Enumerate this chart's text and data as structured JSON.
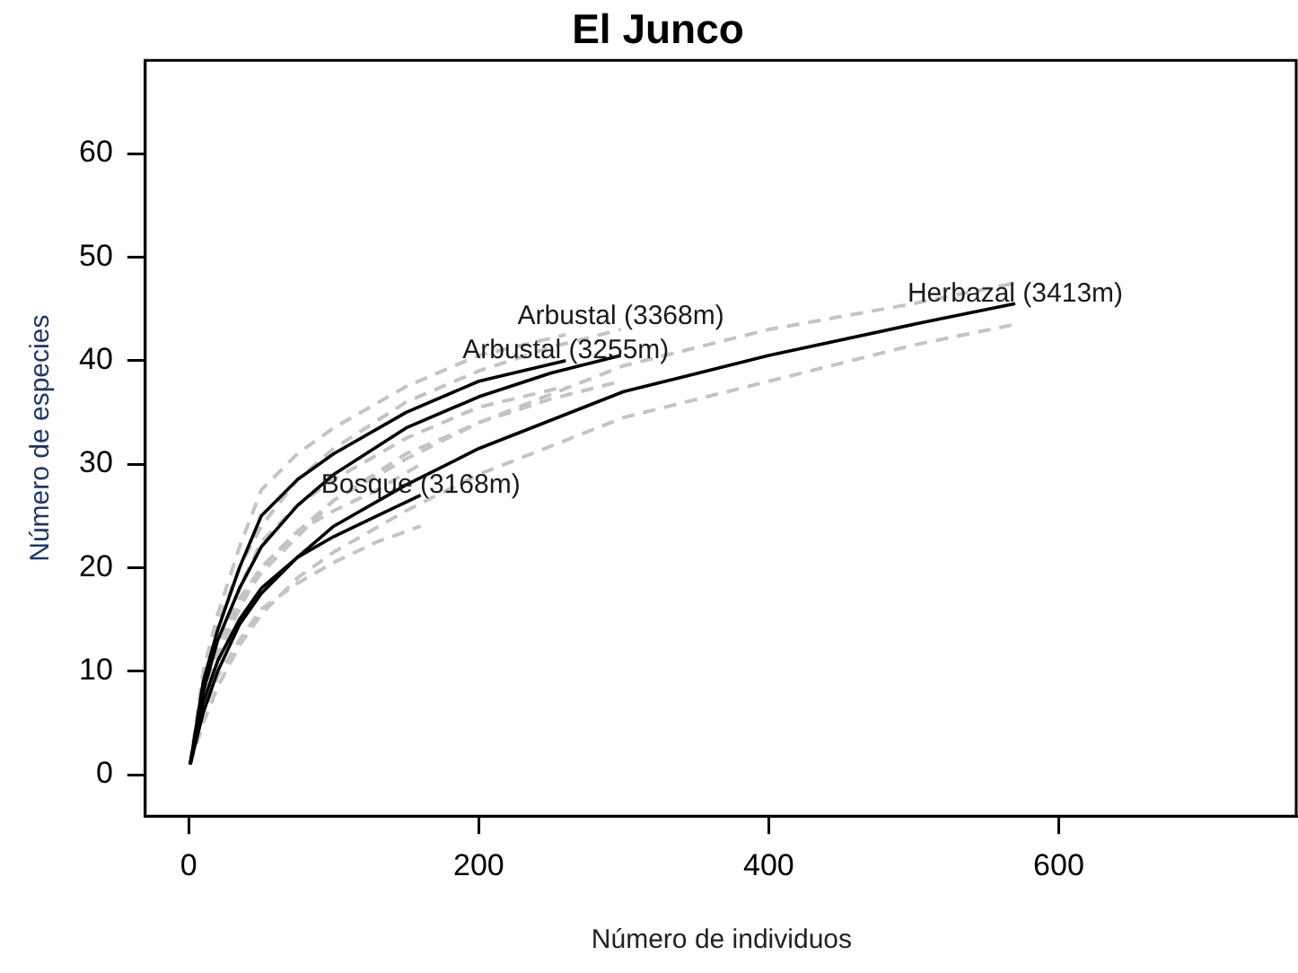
{
  "chart_data": {
    "type": "line",
    "title": "El Junco",
    "xlabel": "Número de individuos",
    "ylabel": "Número de especies",
    "xlim": [
      -30,
      765
    ],
    "ylim": [
      -4,
      69
    ],
    "xticks": [
      0,
      200,
      400,
      600
    ],
    "yticks": [
      0,
      10,
      20,
      30,
      40,
      50,
      60
    ],
    "grid": false,
    "legend": false,
    "marker": "none",
    "line_style": "solid",
    "series": [
      {
        "name": "Bosque (3168m)",
        "color": "#000000",
        "x": [
          1,
          10,
          20,
          35,
          50,
          75,
          100,
          130,
          160
        ],
        "values": [
          1,
          7,
          11,
          15,
          18,
          21,
          23,
          25,
          27
        ]
      },
      {
        "name": "Arbustal (3255m)",
        "color": "#000000",
        "x": [
          1,
          10,
          20,
          35,
          50,
          75,
          100,
          150,
          200,
          260
        ],
        "values": [
          1,
          9,
          14,
          20,
          25,
          28.5,
          31,
          35,
          38,
          40
        ]
      },
      {
        "name": "Arbustal (3368m)",
        "color": "#000000",
        "x": [
          1,
          10,
          20,
          35,
          50,
          75,
          100,
          150,
          200,
          250,
          298
        ],
        "values": [
          1,
          8,
          13,
          18,
          22,
          26,
          29,
          33.5,
          36.5,
          38.8,
          40.5
        ]
      },
      {
        "name": "Herbazal (3413m)",
        "color": "#000000",
        "x": [
          1,
          10,
          20,
          35,
          50,
          75,
          100,
          150,
          200,
          300,
          400,
          500,
          570
        ],
        "values": [
          1,
          6,
          10,
          14.5,
          17.5,
          21,
          24,
          28,
          31.5,
          37,
          40.5,
          43.5,
          45.5
        ]
      },
      {
        "color": "#c4c4c4",
        "line_style": "dashed",
        "x": [
          1,
          10,
          20,
          35,
          50,
          75,
          100,
          130,
          160
        ],
        "values": [
          1,
          6,
          9.5,
          13,
          16,
          18.5,
          20.5,
          22.5,
          24
        ]
      },
      {
        "color": "#c4c4c4",
        "line_style": "dashed",
        "x": [
          1,
          10,
          20,
          35,
          50,
          75,
          100,
          130,
          160
        ],
        "values": [
          1,
          8,
          12.5,
          17,
          20,
          23.5,
          25.5,
          27.5,
          30
        ]
      },
      {
        "color": "#c4c4c4",
        "line_style": "dashed",
        "x": [
          1,
          10,
          20,
          35,
          50,
          75,
          100,
          150,
          200,
          260
        ],
        "values": [
          1,
          8,
          12.5,
          18,
          22.5,
          26,
          28.5,
          32.5,
          35.5,
          37.5
        ]
      },
      {
        "color": "#c4c4c4",
        "line_style": "dashed",
        "x": [
          1,
          10,
          20,
          35,
          50,
          75,
          100,
          150,
          200,
          260
        ],
        "values": [
          1,
          10,
          15.5,
          22,
          27.5,
          31,
          33.5,
          37.5,
          40.5,
          42.5
        ]
      },
      {
        "color": "#c4c4c4",
        "line_style": "dashed",
        "x": [
          1,
          10,
          20,
          35,
          50,
          75,
          100,
          150,
          200,
          250,
          298
        ],
        "values": [
          1,
          7,
          11.5,
          16,
          20,
          23.5,
          26.5,
          31,
          34,
          36.3,
          38
        ]
      },
      {
        "color": "#c4c4c4",
        "line_style": "dashed",
        "x": [
          1,
          10,
          20,
          35,
          50,
          75,
          100,
          150,
          200,
          250,
          298
        ],
        "values": [
          1,
          9,
          14.5,
          20,
          24,
          28.5,
          31.5,
          36,
          39,
          41.3,
          43
        ]
      },
      {
        "color": "#c4c4c4",
        "line_style": "dashed",
        "x": [
          1,
          10,
          20,
          35,
          50,
          75,
          100,
          150,
          200,
          300,
          400,
          500,
          570
        ],
        "values": [
          1,
          5,
          8.5,
          12.5,
          15.5,
          19,
          21.5,
          25.5,
          29,
          34.5,
          38,
          41.5,
          43.5
        ]
      },
      {
        "color": "#c4c4c4",
        "line_style": "dashed",
        "x": [
          1,
          10,
          20,
          35,
          50,
          75,
          100,
          150,
          200,
          300,
          400,
          500,
          570
        ],
        "values": [
          1,
          7,
          11.5,
          16.5,
          19.5,
          23,
          26.5,
          30.5,
          34,
          39.5,
          43,
          45.5,
          47.5
        ]
      }
    ]
  }
}
